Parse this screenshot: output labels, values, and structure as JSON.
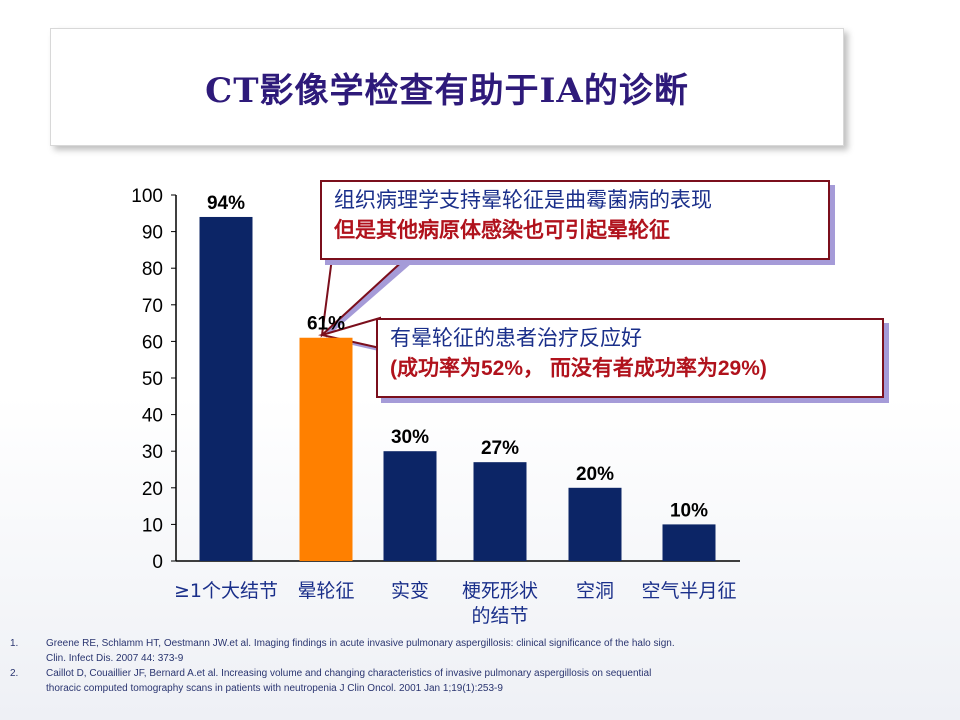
{
  "title": "CT影像学检查有助于IA的诊断",
  "chart_data": {
    "type": "bar",
    "categories": [
      "≥1个大结节",
      "晕轮征",
      "实变",
      "梗死形状\n的结节",
      "空洞",
      "空气半月征"
    ],
    "values": [
      94,
      61,
      30,
      27,
      20,
      10
    ],
    "value_labels": [
      "94%",
      "61%",
      "30%",
      "27%",
      "20%",
      "10%"
    ],
    "ylim": [
      0,
      100
    ],
    "yticks": [
      0,
      10,
      20,
      30,
      40,
      50,
      60,
      70,
      80,
      90,
      100
    ],
    "colors": [
      "#0c2566",
      "#ff8000",
      "#0c2566",
      "#0c2566",
      "#0c2566",
      "#0c2566"
    ],
    "highlight_index": 1,
    "grid": false
  },
  "callouts": [
    {
      "line1": "组织病理学支持晕轮征是曲霉菌病的表现",
      "line2": "但是其他病原体感染也可引起晕轮征"
    },
    {
      "line1": "有晕轮征的患者治疗反应好",
      "line2": "(成功率为52%， 而没有者成功率为29%)"
    }
  ],
  "references": [
    {
      "num": "1.",
      "line1": "Greene RE, Schlamm HT, Oestmann JW.et al. Imaging findings in acute invasive pulmonary aspergillosis: clinical significance of the halo sign.",
      "line2": "Clin. Infect Dis. 2007 44: 373-9"
    },
    {
      "num": "2.",
      "line1": "Caillot D, Couaillier JF, Bernard A.et al. Increasing volume and changing characteristics of invasive pulmonary aspergillosis on sequential",
      "line2": "thoracic computed tomography scans in patients with neutropenia J Clin Oncol. 2001 Jan 1;19(1):253-9"
    }
  ],
  "colors": {
    "title": "#2e1a7a",
    "callout_border": "#7b0f1c",
    "callout_shadow": "#a59bd8",
    "callout_line1": "#1a2f8a",
    "callout_line2": "#b0121c"
  }
}
